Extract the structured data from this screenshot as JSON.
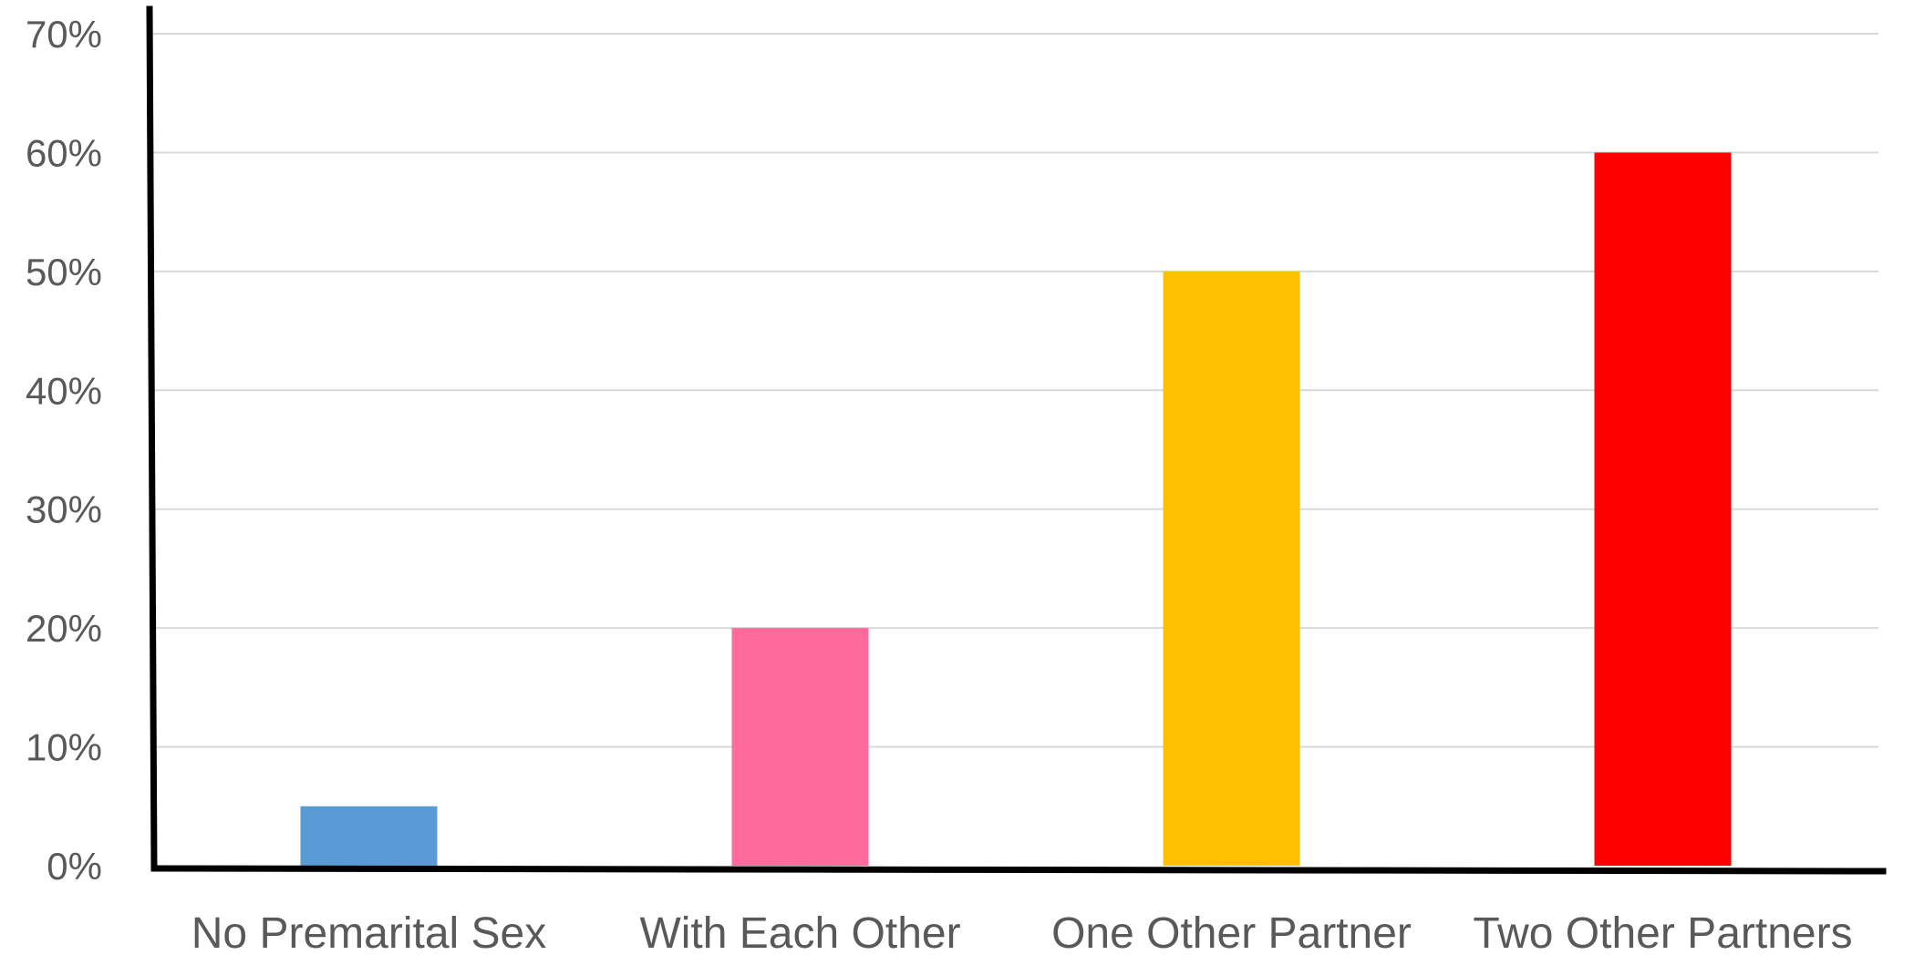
{
  "chart_data": {
    "type": "bar",
    "categories": [
      "No Premarital Sex",
      "With Each Other",
      "One Other Partner",
      "Two Other Partners"
    ],
    "values": [
      5,
      20,
      50,
      60
    ],
    "bar_colors": [
      "#5b9bd5",
      "#ff6b9d",
      "#ffc000",
      "#ff0000"
    ],
    "ylim": [
      0,
      70
    ],
    "yticks": [
      0,
      10,
      20,
      30,
      40,
      50,
      60,
      70
    ],
    "ytick_labels": [
      "0%",
      "10%",
      "20%",
      "30%",
      "40%",
      "50%",
      "60%",
      "70%"
    ],
    "grid": true,
    "gridline_color": "#d9d9d9",
    "axis_color": "#000000",
    "label_color": "#595959",
    "title": "",
    "xlabel": "",
    "ylabel": ""
  }
}
